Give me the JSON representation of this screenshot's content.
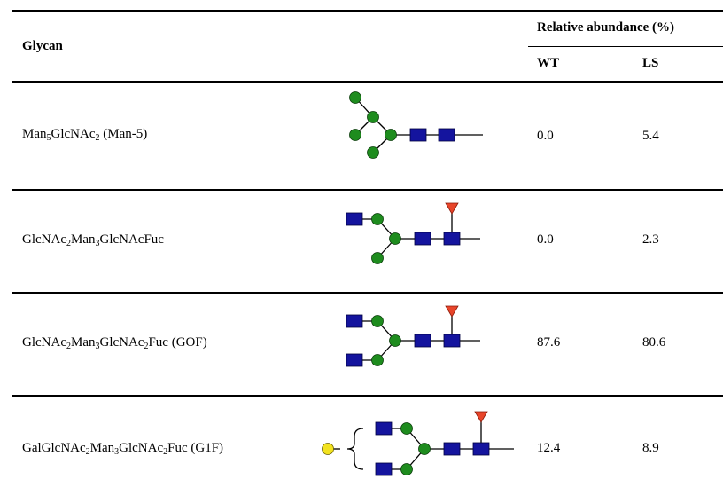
{
  "table": {
    "header": {
      "glycan": "Glycan",
      "relative_abundance": "Relative abundance (%)",
      "wt": "WT",
      "ls": "LS"
    },
    "rows": [
      {
        "name_parts": [
          [
            "Man",
            ""
          ],
          [
            "5",
            "sub"
          ],
          [
            "GlcNAc",
            ""
          ],
          [
            "2",
            "sub"
          ],
          [
            " (Man-5)",
            ""
          ]
        ],
        "glycan_icon": "man5-glycan-structure",
        "wt": "0.0",
        "ls": "5.4"
      },
      {
        "name_parts": [
          [
            "GlcNAc",
            ""
          ],
          [
            "2",
            "sub"
          ],
          [
            "Man",
            ""
          ],
          [
            "3",
            "sub"
          ],
          [
            "GlcNAcFuc",
            ""
          ]
        ],
        "glycan_icon": "glcnac2man3glcnacfuc-glycan-structure",
        "wt": "0.0",
        "ls": "2.3"
      },
      {
        "name_parts": [
          [
            "GlcNAc",
            ""
          ],
          [
            "2",
            "sub"
          ],
          [
            "Man",
            ""
          ],
          [
            "3",
            "sub"
          ],
          [
            "GlcNAc",
            ""
          ],
          [
            "2",
            "sub"
          ],
          [
            "Fuc (GOF)",
            ""
          ]
        ],
        "glycan_icon": "g0f-glycan-structure",
        "wt": "87.6",
        "ls": "80.6"
      },
      {
        "name_parts": [
          [
            "GalGlcNAc",
            ""
          ],
          [
            "2",
            "sub"
          ],
          [
            "Man",
            ""
          ],
          [
            "3",
            "sub"
          ],
          [
            "GlcNAc",
            ""
          ],
          [
            "2",
            "sub"
          ],
          [
            "Fuc (G1F)",
            ""
          ]
        ],
        "glycan_icon": "g1f-glycan-structure",
        "wt": "12.4",
        "ls": "8.9"
      }
    ]
  },
  "colors": {
    "mannose_green": "#1e8c1e",
    "glcnac_blue": "#14149e",
    "fucose_red": "#e8452a",
    "galactose_yellow": "#f2e21f",
    "rule": "#000000"
  }
}
